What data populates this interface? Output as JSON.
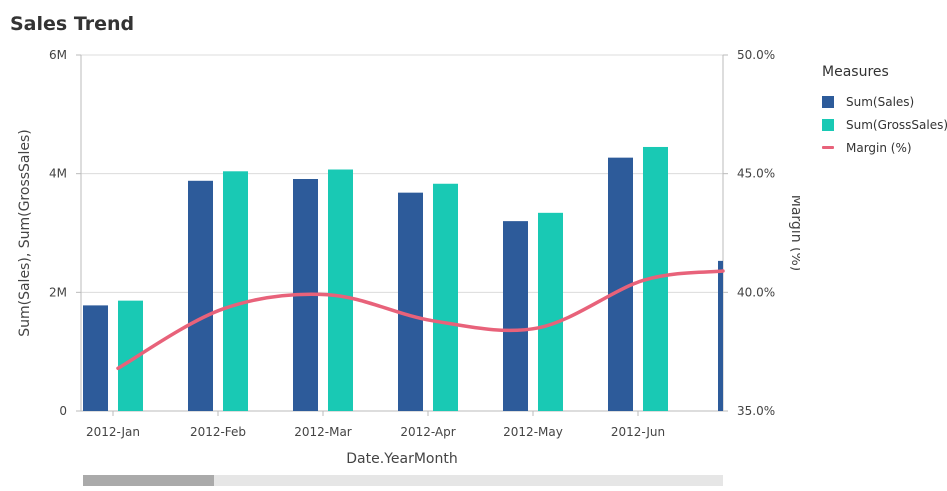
{
  "title": "Sales Trend",
  "legend": {
    "title": "Measures",
    "items": [
      {
        "label": "Sum(Sales)",
        "color": "#2d5b9a",
        "kind": "bar"
      },
      {
        "label": "Sum(GrossSales)",
        "color": "#19c9b4",
        "kind": "bar"
      },
      {
        "label": "Margin (%)",
        "color": "#e8627a",
        "kind": "line"
      }
    ]
  },
  "chart_data": {
    "type": "bar",
    "title": "Sales Trend",
    "xlabel": "Date.YearMonth",
    "ylabel": "Sum(Sales),  Sum(GrossSales)",
    "y2label": "Margin (%)",
    "categories": [
      "2012-Jan",
      "2012-Feb",
      "2012-Mar",
      "2012-Apr",
      "2012-May",
      "2012-Jun"
    ],
    "series": [
      {
        "name": "Sum(Sales)",
        "type": "bar",
        "axis": "left",
        "color": "#2d5b9a",
        "values": [
          1780000,
          3880000,
          3910000,
          3680000,
          3200000,
          4270000
        ]
      },
      {
        "name": "Sum(GrossSales)",
        "type": "bar",
        "axis": "left",
        "color": "#19c9b4",
        "values": [
          1860000,
          4040000,
          4070000,
          3830000,
          3340000,
          4450000
        ]
      },
      {
        "name": "Margin (%)",
        "type": "line",
        "axis": "right",
        "color": "#e8627a",
        "values": [
          36.8,
          39.3,
          39.9,
          38.8,
          38.5,
          40.5
        ]
      }
    ],
    "partial_next": {
      "sales": 2530000,
      "margin": 40.9
    },
    "ylim": [
      0,
      6000000
    ],
    "y_ticks": [
      {
        "v": 0,
        "label": "0"
      },
      {
        "v": 2000000,
        "label": "2M"
      },
      {
        "v": 4000000,
        "label": "4M"
      },
      {
        "v": 6000000,
        "label": "6M"
      }
    ],
    "y2lim": [
      35,
      50
    ],
    "y2_ticks": [
      {
        "v": 35,
        "label": "35.0%"
      },
      {
        "v": 40,
        "label": "40.0%"
      },
      {
        "v": 45,
        "label": "45.0%"
      },
      {
        "v": 50,
        "label": "50.0%"
      }
    ],
    "grid": true,
    "legend_position": "right"
  }
}
